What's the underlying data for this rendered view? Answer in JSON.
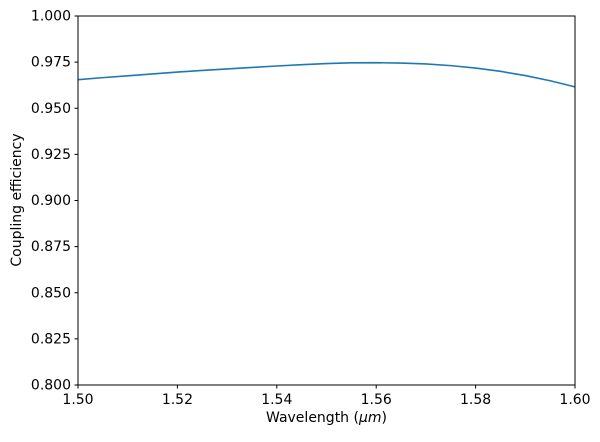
{
  "chart_data": {
    "type": "line",
    "title": "",
    "xlabel": "Wavelength (μm)",
    "xlabel_prefix": "Wavelength (",
    "xlabel_unit": "μm",
    "xlabel_suffix": ")",
    "ylabel": "Coupling efficiency",
    "xlim": [
      1.5,
      1.6
    ],
    "ylim": [
      0.8,
      1.0
    ],
    "grid": false,
    "legend": null,
    "line_color": "#1f77b4",
    "line_width": 1.6,
    "x_ticks": [
      1.5,
      1.52,
      1.54,
      1.56,
      1.58,
      1.6
    ],
    "x_tick_labels": [
      "1.50",
      "1.52",
      "1.54",
      "1.56",
      "1.58",
      "1.60"
    ],
    "y_ticks": [
      0.8,
      0.825,
      0.85,
      0.875,
      0.9,
      0.925,
      0.95,
      0.975,
      1.0
    ],
    "y_tick_labels": [
      "0.800",
      "0.825",
      "0.850",
      "0.875",
      "0.900",
      "0.925",
      "0.950",
      "0.975",
      "1.000"
    ],
    "series": [
      {
        "name": "coupling_efficiency",
        "x": [
          1.5,
          1.505,
          1.51,
          1.515,
          1.52,
          1.525,
          1.53,
          1.535,
          1.54,
          1.545,
          1.55,
          1.555,
          1.56,
          1.565,
          1.57,
          1.575,
          1.58,
          1.585,
          1.59,
          1.595,
          1.6
        ],
        "y": [
          0.9655,
          0.9666,
          0.9676,
          0.9686,
          0.9696,
          0.9705,
          0.9713,
          0.9721,
          0.9729,
          0.9736,
          0.9742,
          0.9746,
          0.9747,
          0.9745,
          0.974,
          0.9731,
          0.9718,
          0.97,
          0.9677,
          0.9649,
          0.9616
        ]
      }
    ]
  }
}
